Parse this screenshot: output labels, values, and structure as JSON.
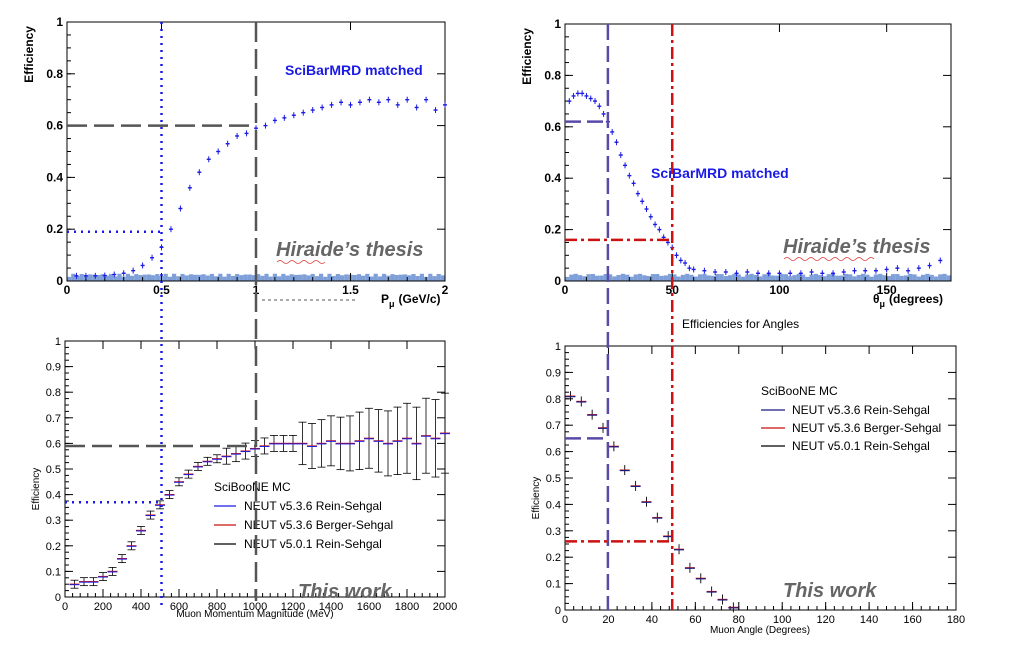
{
  "colors": {
    "blue": "#1a1ae6",
    "dashGray": "#555555",
    "bgHist": "#7f9fd8",
    "red": "#cc1111",
    "purple": "#5a4aa8",
    "black": "#000000"
  },
  "chart_data": [
    {
      "id": "tl",
      "type": "scatter",
      "title": "",
      "annotation": "SciBarMRD matched",
      "watermark": "Hiraide’s thesis",
      "xlabel": "P",
      "xlabel_sub": "μ",
      "xlabel_unit": "(GeV/c)",
      "ylabel": "Efficiency",
      "xlim": [
        0,
        2
      ],
      "ylim": [
        0,
        1
      ],
      "xticks": [
        "0",
        "0.5",
        "1",
        "1.5",
        "2"
      ],
      "yticks": [
        "0",
        "0.2",
        "0.4",
        "0.6",
        "0.8",
        "1"
      ],
      "series": [
        {
          "values": [
            [
              0.05,
              0.02
            ],
            [
              0.1,
              0.02
            ],
            [
              0.15,
              0.02
            ],
            [
              0.2,
              0.021
            ],
            [
              0.25,
              0.025
            ],
            [
              0.3,
              0.03
            ],
            [
              0.35,
              0.04
            ],
            [
              0.4,
              0.06
            ],
            [
              0.45,
              0.09
            ],
            [
              0.5,
              0.13
            ],
            [
              0.55,
              0.2
            ],
            [
              0.6,
              0.28
            ],
            [
              0.65,
              0.36
            ],
            [
              0.7,
              0.42
            ],
            [
              0.75,
              0.47
            ],
            [
              0.8,
              0.5
            ],
            [
              0.85,
              0.53
            ],
            [
              0.9,
              0.56
            ],
            [
              0.95,
              0.57
            ],
            [
              1.0,
              0.59
            ],
            [
              1.05,
              0.6
            ],
            [
              1.1,
              0.62
            ],
            [
              1.15,
              0.63
            ],
            [
              1.2,
              0.64
            ],
            [
              1.25,
              0.65
            ],
            [
              1.3,
              0.66
            ],
            [
              1.35,
              0.67
            ],
            [
              1.4,
              0.68
            ],
            [
              1.45,
              0.69
            ],
            [
              1.5,
              0.68
            ],
            [
              1.55,
              0.69
            ],
            [
              1.6,
              0.7
            ],
            [
              1.65,
              0.69
            ],
            [
              1.7,
              0.7
            ],
            [
              1.75,
              0.68
            ],
            [
              1.8,
              0.7
            ],
            [
              1.85,
              0.67
            ],
            [
              1.9,
              0.7
            ],
            [
              1.95,
              0.66
            ],
            [
              2.0,
              0.68
            ]
          ]
        }
      ],
      "background_hist": 0.02,
      "guides": {
        "hline": 0.6,
        "hline2": 0.19,
        "vline_blue": 0.5,
        "vline_gray": 1.0
      }
    },
    {
      "id": "tr",
      "type": "scatter",
      "title": "",
      "annotation": "SciBarMRD matched",
      "watermark": "Hiraide’s thesis",
      "xlabel": "θ",
      "xlabel_sub": "μ",
      "xlabel_unit": "(degrees)",
      "ylabel": "Efficiency",
      "xlim": [
        0,
        180
      ],
      "ylim": [
        0,
        1
      ],
      "xticks": [
        "0",
        "50",
        "100",
        "150"
      ],
      "yticks": [
        "0",
        "0.2",
        "0.4",
        "0.6",
        "0.8",
        "1"
      ],
      "series": [
        {
          "values": [
            [
              2,
              0.7
            ],
            [
              4,
              0.72
            ],
            [
              6,
              0.73
            ],
            [
              8,
              0.73
            ],
            [
              10,
              0.72
            ],
            [
              12,
              0.71
            ],
            [
              14,
              0.7
            ],
            [
              16,
              0.68
            ],
            [
              18,
              0.65
            ],
            [
              20,
              0.62
            ],
            [
              22,
              0.58
            ],
            [
              24,
              0.54
            ],
            [
              26,
              0.49
            ],
            [
              28,
              0.45
            ],
            [
              30,
              0.41
            ],
            [
              32,
              0.38
            ],
            [
              34,
              0.34
            ],
            [
              36,
              0.31
            ],
            [
              38,
              0.28
            ],
            [
              40,
              0.25
            ],
            [
              42,
              0.22
            ],
            [
              44,
              0.2
            ],
            [
              46,
              0.17
            ],
            [
              48,
              0.15
            ],
            [
              50,
              0.13
            ],
            [
              52,
              0.1
            ],
            [
              54,
              0.08
            ],
            [
              56,
              0.07
            ],
            [
              58,
              0.05
            ],
            [
              60,
              0.045
            ],
            [
              65,
              0.04
            ],
            [
              70,
              0.035
            ],
            [
              75,
              0.035
            ],
            [
              80,
              0.03
            ],
            [
              85,
              0.035
            ],
            [
              90,
              0.03
            ],
            [
              95,
              0.03
            ],
            [
              100,
              0.03
            ],
            [
              105,
              0.03
            ],
            [
              110,
              0.03
            ],
            [
              115,
              0.035
            ],
            [
              120,
              0.03
            ],
            [
              125,
              0.03
            ],
            [
              130,
              0.035
            ],
            [
              135,
              0.04
            ],
            [
              140,
              0.04
            ],
            [
              145,
              0.04
            ],
            [
              150,
              0.045
            ],
            [
              155,
              0.05
            ],
            [
              160,
              0.04
            ],
            [
              165,
              0.05
            ],
            [
              170,
              0.06
            ],
            [
              175,
              0.08
            ]
          ]
        }
      ],
      "background_hist": 0.02,
      "guides": {
        "hline": 0.62,
        "hline2": 0.16,
        "vline_purple": 20,
        "vline_red": 50
      }
    },
    {
      "id": "bl",
      "type": "scatter",
      "title": "",
      "watermark": "This work",
      "xlabel": "Muon Momentum Magnitude (MeV)",
      "ylabel": "Efficiency",
      "xlim": [
        0,
        2000
      ],
      "ylim": [
        0,
        1
      ],
      "xticks": [
        "0",
        "200",
        "400",
        "600",
        "800",
        "1000",
        "1200",
        "1400",
        "1600",
        "1800",
        "2000"
      ],
      "yticks": [
        "0",
        "0.1",
        "0.2",
        "0.3",
        "0.4",
        "0.5",
        "0.6",
        "0.7",
        "0.8",
        "0.9",
        "1"
      ],
      "legend": {
        "title": "SciBooNE MC",
        "entries": [
          "NEUT v5.3.6 Rein-Sehgal",
          "NEUT v5.3.6 Berger-Sehgal",
          "NEUT v5.0.1 Rein-Sehgal"
        ]
      },
      "series": [
        {
          "values": [
            [
              50,
              0.05
            ],
            [
              100,
              0.06
            ],
            [
              150,
              0.06
            ],
            [
              200,
              0.08
            ],
            [
              250,
              0.1
            ],
            [
              300,
              0.15
            ],
            [
              350,
              0.2
            ],
            [
              400,
              0.26
            ],
            [
              450,
              0.32
            ],
            [
              500,
              0.36
            ],
            [
              550,
              0.4
            ],
            [
              600,
              0.45
            ],
            [
              650,
              0.48
            ],
            [
              700,
              0.51
            ],
            [
              750,
              0.53
            ],
            [
              800,
              0.54
            ],
            [
              850,
              0.55
            ],
            [
              900,
              0.56
            ],
            [
              950,
              0.57
            ],
            [
              1000,
              0.58
            ],
            [
              1050,
              0.59
            ],
            [
              1100,
              0.6
            ],
            [
              1150,
              0.6
            ],
            [
              1200,
              0.6
            ],
            [
              1250,
              0.6
            ],
            [
              1300,
              0.59
            ],
            [
              1350,
              0.6
            ],
            [
              1400,
              0.61
            ],
            [
              1450,
              0.6
            ],
            [
              1500,
              0.6
            ],
            [
              1550,
              0.61
            ],
            [
              1600,
              0.62
            ],
            [
              1650,
              0.61
            ],
            [
              1700,
              0.6
            ],
            [
              1750,
              0.61
            ],
            [
              1800,
              0.62
            ],
            [
              1850,
              0.6
            ],
            [
              1900,
              0.63
            ],
            [
              1950,
              0.62
            ],
            [
              2000,
              0.64
            ]
          ]
        }
      ],
      "guides": {
        "hline": 0.59,
        "hline2": 0.37,
        "vline_blue": 500,
        "vline_gray": 1000
      }
    },
    {
      "id": "br",
      "type": "scatter",
      "title": "Efficiencies for Angles",
      "watermark": "This work",
      "xlabel": "Muon Angle (Degrees)",
      "ylabel": "Efficiency",
      "xlim": [
        0,
        180
      ],
      "ylim": [
        0,
        1
      ],
      "xticks": [
        "0",
        "20",
        "40",
        "60",
        "80",
        "100",
        "120",
        "140",
        "160",
        "180"
      ],
      "yticks": [
        "0",
        "0.1",
        "0.2",
        "0.3",
        "0.4",
        "0.5",
        "0.6",
        "0.7",
        "0.8",
        "0.9",
        "1"
      ],
      "legend": {
        "title": "SciBooNE MC",
        "entries": [
          "NEUT v5.3.6 Rein-Sehgal",
          "NEUT v5.3.6 Berger-Sehgal",
          "NEUT v5.0.1 Rein-Sehgal"
        ]
      },
      "series": [
        {
          "values": [
            [
              2.5,
              0.81
            ],
            [
              7.5,
              0.79
            ],
            [
              12.5,
              0.74
            ],
            [
              17.5,
              0.69
            ],
            [
              22.5,
              0.62
            ],
            [
              27.5,
              0.53
            ],
            [
              32.5,
              0.47
            ],
            [
              37.5,
              0.41
            ],
            [
              42.5,
              0.35
            ],
            [
              47.5,
              0.28
            ],
            [
              52.5,
              0.23
            ],
            [
              57.5,
              0.16
            ],
            [
              62.5,
              0.12
            ],
            [
              67.5,
              0.07
            ],
            [
              72.5,
              0.04
            ],
            [
              77.5,
              0.01
            ]
          ]
        }
      ],
      "guides": {
        "hline": 0.65,
        "hline2": 0.26,
        "vline_purple": 20,
        "vline_red": 50
      }
    }
  ]
}
